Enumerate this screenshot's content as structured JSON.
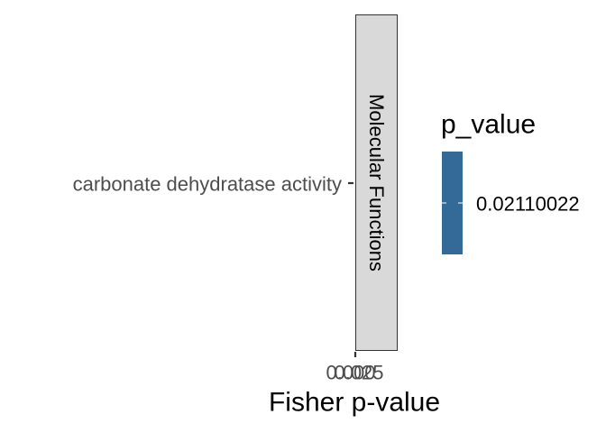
{
  "chart_data": {
    "type": "bar",
    "orientation": "horizontal",
    "categories": [
      "carbonate dehydratase activity"
    ],
    "values": [
      0.0211
    ],
    "facet_label": "Molecular Functions",
    "xlabel": "Fisher p-value",
    "ylabel": "",
    "x_tick_labels": [
      "0.000",
      "0.025"
    ],
    "legend": {
      "title": "p_value",
      "entries": [
        "0.02110022"
      ],
      "colors": [
        "#336a98"
      ],
      "placement": "right"
    },
    "grid": false
  },
  "colors": {
    "strip_fill": "#d9d9d9",
    "strip_border": "#333333",
    "axis": "#333333",
    "bar": "#336a98"
  }
}
